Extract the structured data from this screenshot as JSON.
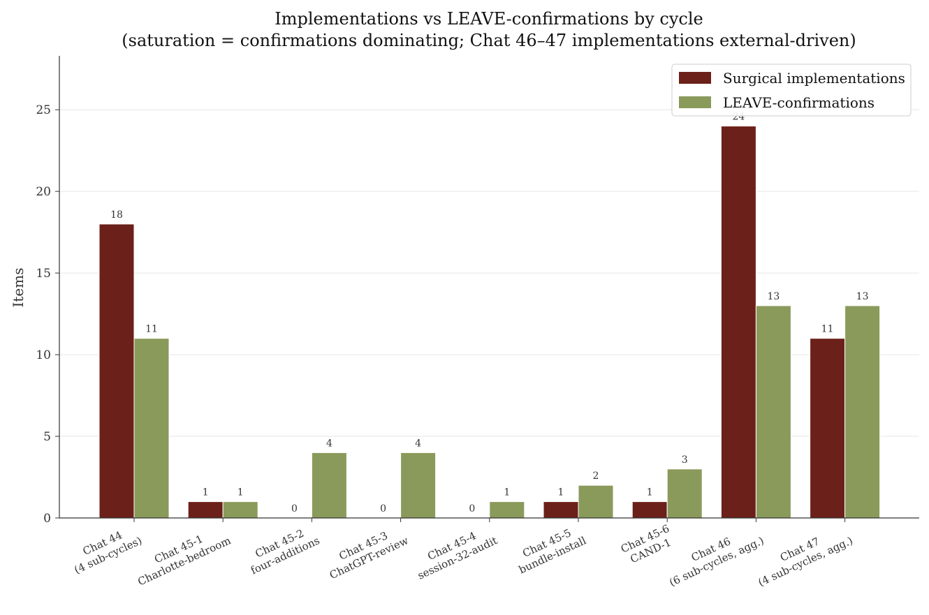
{
  "chart_data": {
    "type": "bar",
    "title": "Implementations vs LEAVE-confirmations by cycle",
    "subtitle": "(saturation = confirmations dominating; Chat 46–47 implementations external-driven)",
    "xlabel": "",
    "ylabel": "Items",
    "ylim": [
      0,
      28.3
    ],
    "yticks": [
      0,
      5,
      10,
      15,
      20,
      25
    ],
    "grid": "y",
    "legend_position": "top-right",
    "categories": [
      [
        "Chat 44",
        "(4 sub-cycles)"
      ],
      [
        "Chat 45-1",
        "Charlotte-bedroom"
      ],
      [
        "Chat 45-2",
        "four-additions"
      ],
      [
        "Chat 45-3",
        "ChatGPT-review"
      ],
      [
        "Chat 45-4",
        "session-32-audit"
      ],
      [
        "Chat 45-5",
        "bundle-install"
      ],
      [
        "Chat 45-6",
        "CAND-1"
      ],
      [
        "Chat 46",
        "(6 sub-cycles, agg.)"
      ],
      [
        "Chat 47",
        "(4 sub-cycles, agg.)"
      ]
    ],
    "series": [
      {
        "name": "Surgical implementations",
        "color": "#6b2019",
        "values": [
          18,
          1,
          0,
          0,
          0,
          1,
          1,
          24,
          11
        ]
      },
      {
        "name": "LEAVE-confirmations",
        "color": "#8a9a5b",
        "values": [
          11,
          1,
          4,
          4,
          1,
          2,
          3,
          13,
          13
        ]
      }
    ]
  }
}
